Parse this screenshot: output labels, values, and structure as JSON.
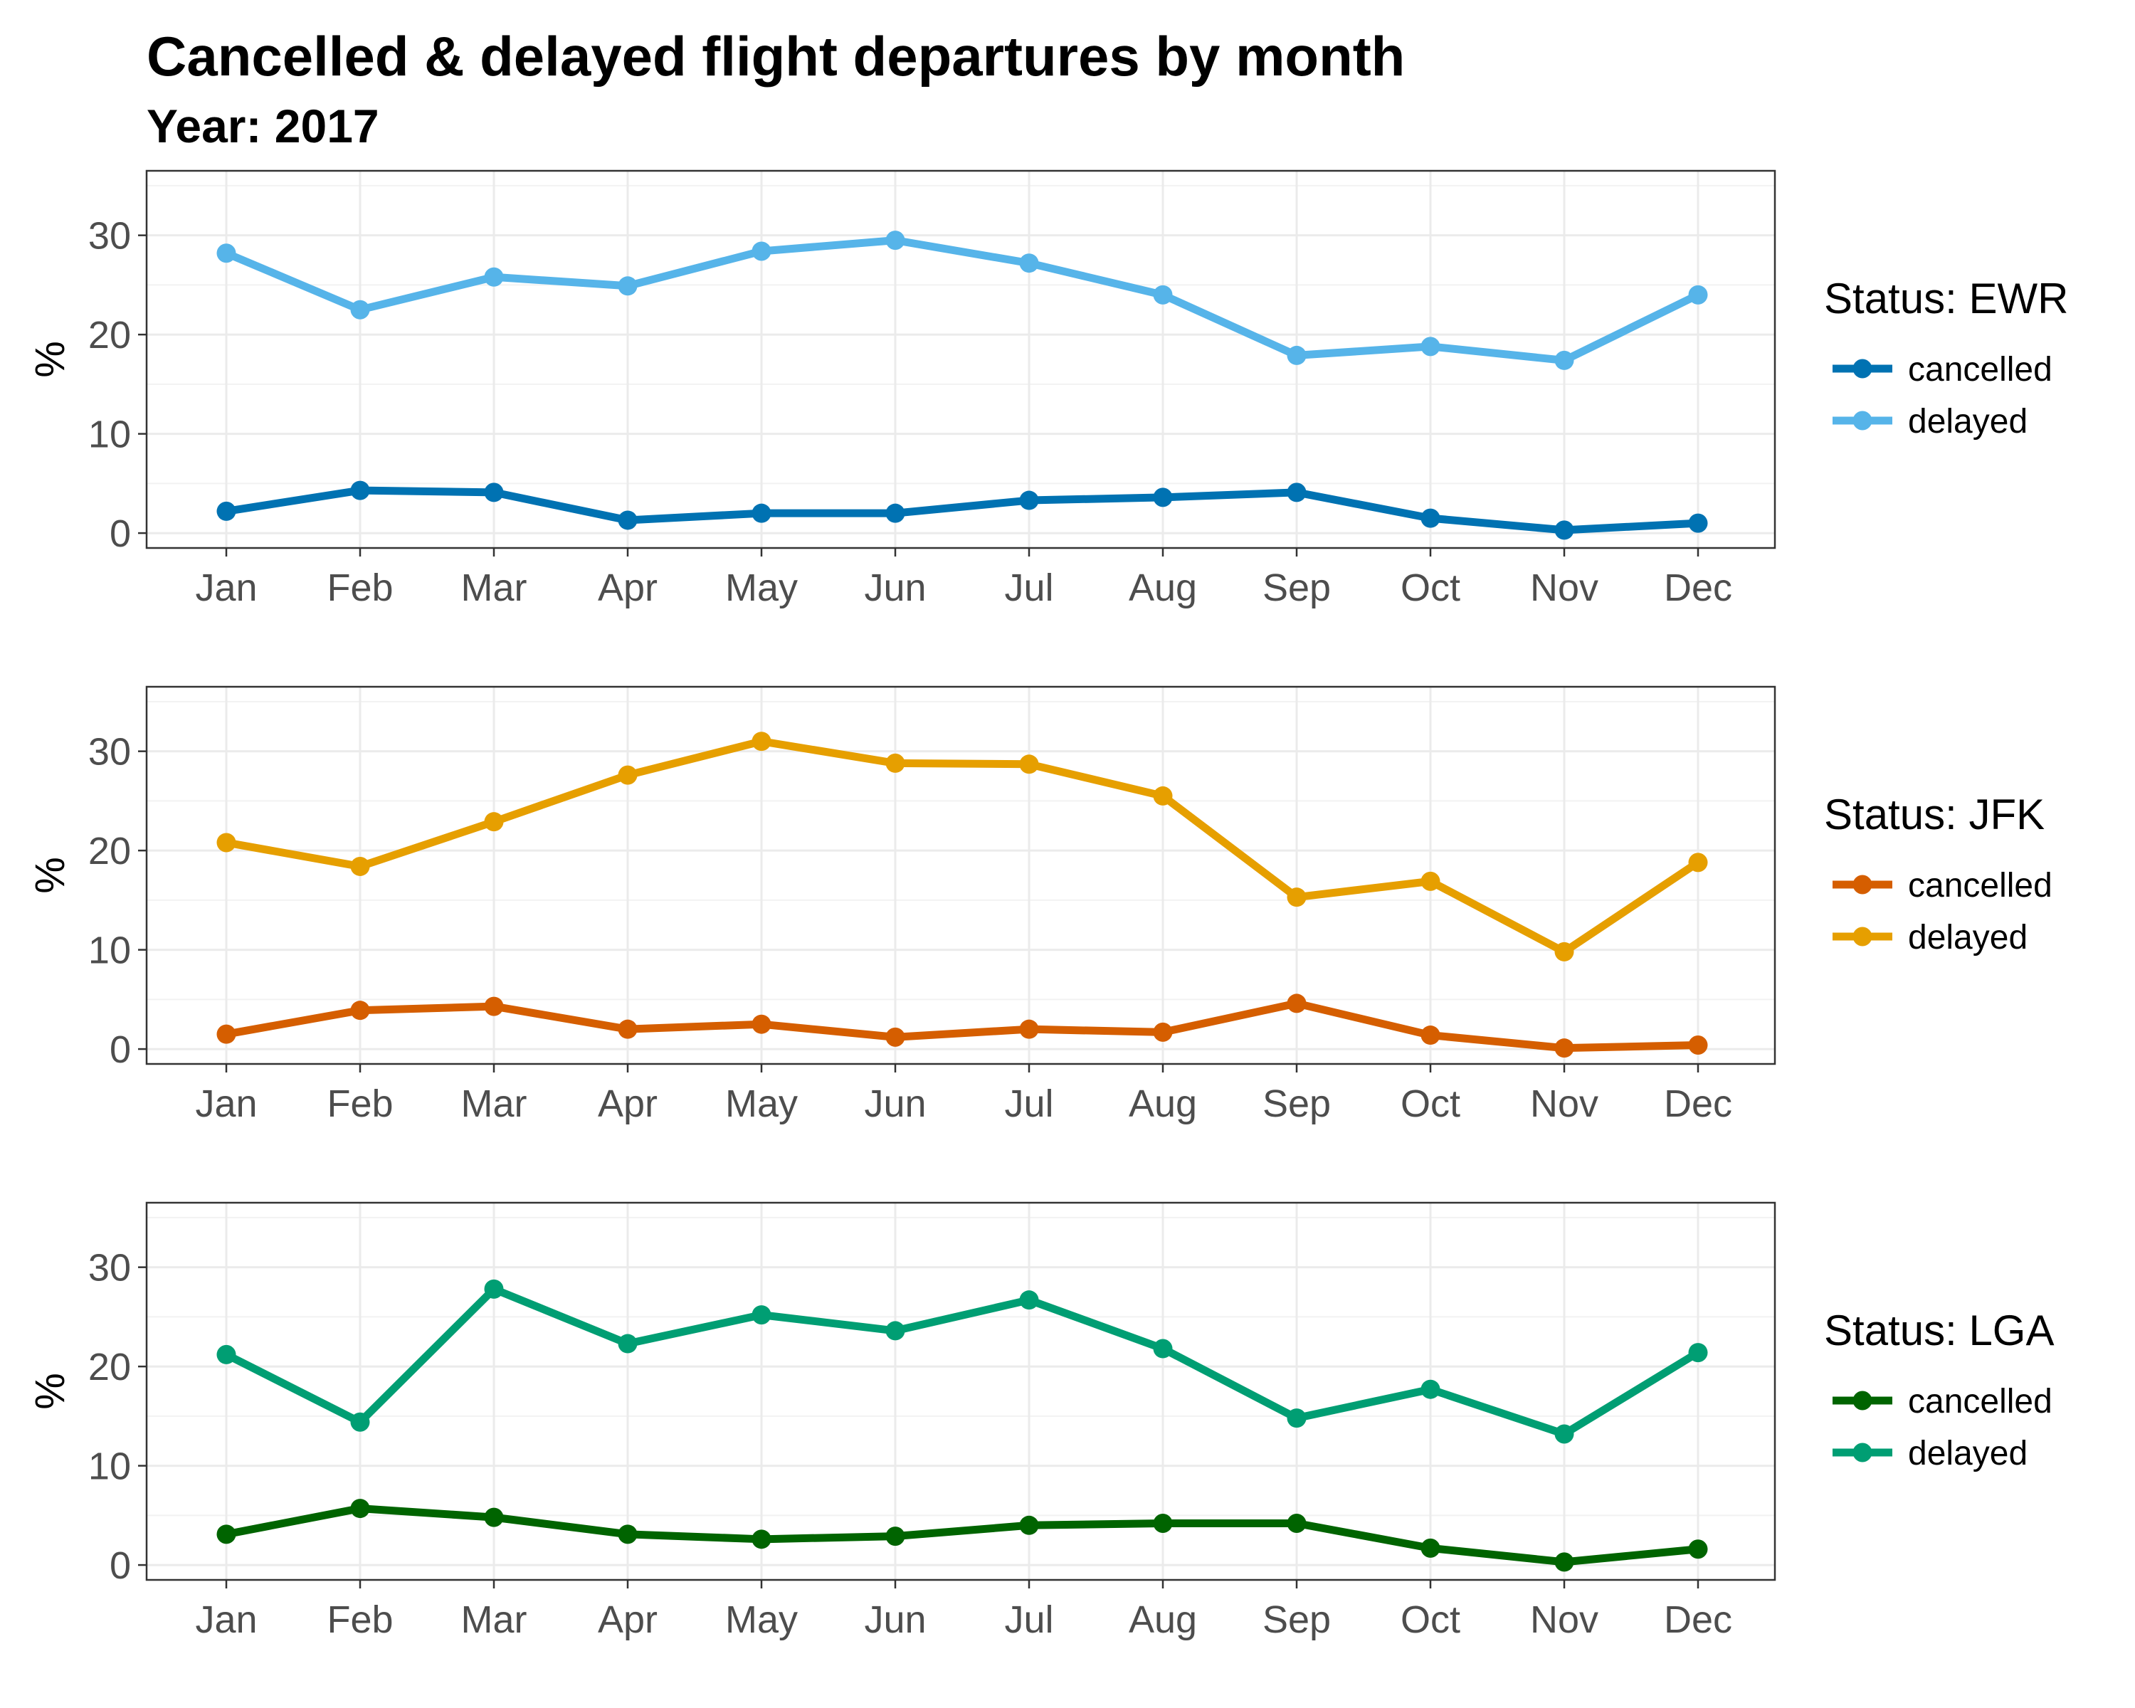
{
  "title": "Cancelled & delayed flight departures by month",
  "subtitle": "Year: 2017",
  "chart_data": [
    {
      "type": "line",
      "airport": "EWR",
      "legend_title": "Status: EWR",
      "categories": [
        "Jan",
        "Feb",
        "Mar",
        "Apr",
        "May",
        "Jun",
        "Jul",
        "Aug",
        "Sep",
        "Oct",
        "Nov",
        "Dec"
      ],
      "ylabel": "%",
      "yticks": [
        "0",
        "10",
        "20",
        "30"
      ],
      "ylim": [
        -1.5,
        36.5
      ],
      "grid": true,
      "legend_position": "right",
      "series": [
        {
          "name": "cancelled",
          "color": "#0072B2",
          "values": [
            2.2,
            4.3,
            4.1,
            1.3,
            2.0,
            2.0,
            3.3,
            3.6,
            4.1,
            1.5,
            0.3,
            1.0
          ]
        },
        {
          "name": "delayed",
          "color": "#56B4E9",
          "values": [
            28.2,
            22.5,
            25.8,
            24.9,
            28.4,
            29.5,
            27.2,
            24.0,
            17.9,
            18.8,
            17.4,
            24.0
          ]
        }
      ]
    },
    {
      "type": "line",
      "airport": "JFK",
      "legend_title": "Status: JFK",
      "categories": [
        "Jan",
        "Feb",
        "Mar",
        "Apr",
        "May",
        "Jun",
        "Jul",
        "Aug",
        "Sep",
        "Oct",
        "Nov",
        "Dec"
      ],
      "ylabel": "%",
      "yticks": [
        "0",
        "10",
        "20",
        "30"
      ],
      "ylim": [
        -1.5,
        36.5
      ],
      "grid": true,
      "legend_position": "right",
      "series": [
        {
          "name": "cancelled",
          "color": "#D55E00",
          "values": [
            1.5,
            3.9,
            4.3,
            2.0,
            2.5,
            1.2,
            2.0,
            1.7,
            4.6,
            1.4,
            0.1,
            0.4
          ]
        },
        {
          "name": "delayed",
          "color": "#E69F00",
          "values": [
            20.8,
            18.4,
            22.9,
            27.6,
            31.0,
            28.8,
            28.7,
            25.5,
            15.3,
            16.9,
            9.8,
            18.8
          ]
        }
      ]
    },
    {
      "type": "line",
      "airport": "LGA",
      "legend_title": "Status: LGA",
      "categories": [
        "Jan",
        "Feb",
        "Mar",
        "Apr",
        "May",
        "Jun",
        "Jul",
        "Aug",
        "Sep",
        "Oct",
        "Nov",
        "Dec"
      ],
      "ylabel": "%",
      "yticks": [
        "0",
        "10",
        "20",
        "30"
      ],
      "ylim": [
        -1.5,
        36.5
      ],
      "grid": true,
      "legend_position": "right",
      "series": [
        {
          "name": "cancelled",
          "color": "#006400",
          "values": [
            3.1,
            5.7,
            4.8,
            3.1,
            2.6,
            2.9,
            4.0,
            4.2,
            4.2,
            1.7,
            0.3,
            1.6
          ]
        },
        {
          "name": "delayed",
          "color": "#009E73",
          "values": [
            21.2,
            14.4,
            27.8,
            22.3,
            25.2,
            23.6,
            26.7,
            21.8,
            14.8,
            17.7,
            13.2,
            21.4
          ]
        }
      ]
    }
  ]
}
